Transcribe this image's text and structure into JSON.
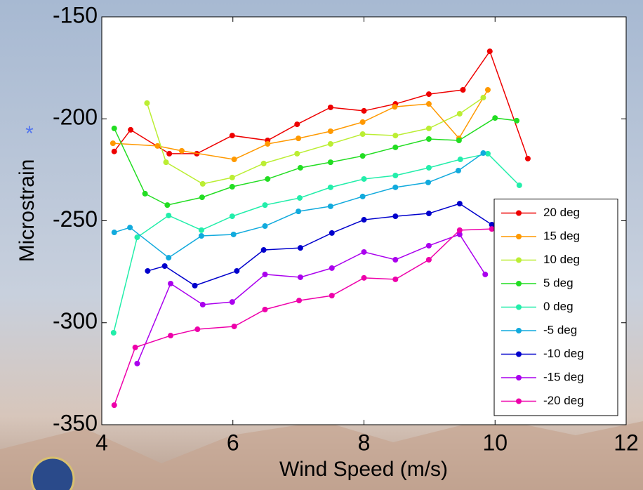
{
  "chart_data": {
    "type": "line",
    "xlabel": "Wind Speed (m/s)",
    "ylabel": "Microstrain",
    "annotation": "*",
    "xlim": [
      4,
      12
    ],
    "xticks": [
      4,
      6,
      8,
      10,
      12
    ],
    "ylim": [
      -350,
      -150
    ],
    "yticks": [
      -350,
      -300,
      -250,
      -200,
      -150
    ],
    "legend": "lower right",
    "series": [
      {
        "name": "20 deg",
        "color": "#ee0000",
        "x": [
          4.19,
          4.44,
          5.03,
          5.45,
          5.99,
          6.53,
          6.98,
          7.49,
          8.0,
          8.48,
          8.99,
          9.51,
          9.92,
          10.5
        ],
        "values": [
          -216,
          -205.4,
          -217.1,
          -217.1,
          -208.2,
          -210.6,
          -202.7,
          -194.4,
          -196.1,
          -192.7,
          -187.9,
          -185.8,
          -166.9,
          -219.5
        ]
      },
      {
        "name": "15 deg",
        "color": "#ff9900",
        "x": [
          4.17,
          4.85,
          5.22,
          6.02,
          6.53,
          7.0,
          7.49,
          7.98,
          8.47,
          8.99,
          9.45,
          9.89
        ],
        "values": [
          -212,
          -213.3,
          -215.7,
          -219.9,
          -212.3,
          -209.6,
          -206.1,
          -201.6,
          -194.1,
          -192.7,
          -209.6,
          -185.8
        ]
      },
      {
        "name": "10 deg",
        "color": "#bbee33",
        "x": [
          4.69,
          4.98,
          5.54,
          5.99,
          6.47,
          6.98,
          7.49,
          7.98,
          8.48,
          8.99,
          9.46,
          9.82
        ],
        "values": [
          -192.3,
          -221.3,
          -231.9,
          -228.8,
          -221.9,
          -217.1,
          -212.3,
          -207.5,
          -208.2,
          -204.7,
          -197.5,
          -189.6
        ]
      },
      {
        "name": "5 deg",
        "color": "#22dd22",
        "x": [
          4.19,
          4.66,
          5.0,
          5.53,
          5.99,
          6.53,
          7.03,
          7.49,
          7.98,
          8.48,
          8.99,
          9.45,
          10.0,
          10.33
        ],
        "values": [
          -204.7,
          -236.7,
          -242.3,
          -238.5,
          -233.3,
          -229.5,
          -224,
          -221.3,
          -218.2,
          -214,
          -209.9,
          -210.6,
          -199.6,
          -200.9
        ]
      },
      {
        "name": "0 deg",
        "color": "#22eeaa",
        "x": [
          4.18,
          4.54,
          5.02,
          5.52,
          5.99,
          6.49,
          7.02,
          7.49,
          8.0,
          8.48,
          8.99,
          9.47,
          9.89,
          10.37
        ],
        "values": [
          -304.9,
          -258.1,
          -247.4,
          -254.6,
          -247.8,
          -242.3,
          -238.8,
          -233.6,
          -229.5,
          -227.8,
          -224,
          -219.9,
          -217.1,
          -232.6
        ]
      },
      {
        "name": "-5 deg",
        "color": "#11aadd",
        "x": [
          4.19,
          4.43,
          5.02,
          5.52,
          6.01,
          6.49,
          7.0,
          7.49,
          7.98,
          8.48,
          8.98,
          9.44,
          9.82
        ],
        "values": [
          -255.7,
          -253.3,
          -268.1,
          -257.4,
          -256.7,
          -252.6,
          -245.4,
          -242.9,
          -238.1,
          -233.6,
          -231.2,
          -225.4,
          -216.8
        ]
      },
      {
        "name": "-10 deg",
        "color": "#0000cc",
        "x": [
          4.7,
          4.96,
          5.42,
          6.06,
          6.47,
          7.03,
          7.51,
          8.0,
          8.48,
          8.99,
          9.46,
          9.95
        ],
        "values": [
          -274.6,
          -272.2,
          -281.8,
          -274.6,
          -264.3,
          -263.3,
          -256,
          -249.5,
          -247.8,
          -246.4,
          -241.6,
          -251.9
        ]
      },
      {
        "name": "-15 deg",
        "color": "#aa00ee",
        "x": [
          4.54,
          5.05,
          5.54,
          5.99,
          6.49,
          7.03,
          7.51,
          8.0,
          8.48,
          8.99,
          9.46,
          9.85
        ],
        "values": [
          -320,
          -280.8,
          -291.1,
          -289.8,
          -276.3,
          -277.7,
          -273.2,
          -265.3,
          -269.1,
          -262.2,
          -256.7,
          -276.3
        ]
      },
      {
        "name": "-20 deg",
        "color": "#ee00aa",
        "x": [
          4.19,
          4.51,
          5.05,
          5.46,
          6.02,
          6.49,
          7.01,
          7.51,
          8.0,
          8.48,
          8.99,
          9.46,
          9.95
        ],
        "values": [
          -340.4,
          -312.1,
          -306.3,
          -303.2,
          -301.8,
          -293.5,
          -289.1,
          -286.7,
          -278,
          -278.7,
          -269.1,
          -254.6,
          -254
        ]
      }
    ]
  }
}
